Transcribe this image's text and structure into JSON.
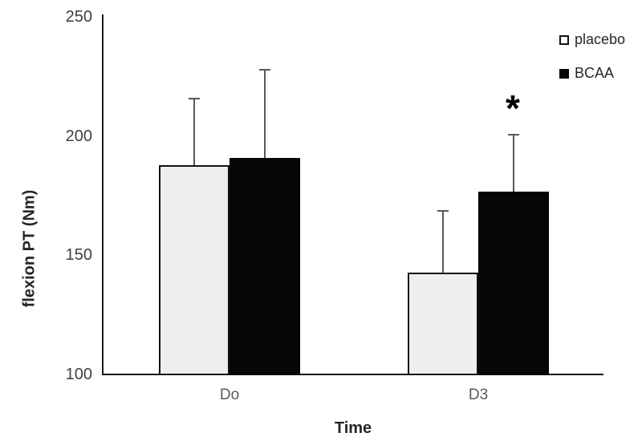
{
  "chart_data": {
    "type": "bar",
    "title": "",
    "xlabel": "Time",
    "ylabel": "flexion PT (Nm)",
    "categories": [
      "Do",
      "D3"
    ],
    "series": [
      {
        "name": "placebo",
        "fill": "#eeeeee",
        "border": "#111111",
        "values": [
          188,
          143
        ],
        "errors_up": [
          28,
          26
        ]
      },
      {
        "name": "BCAA",
        "fill": "#060606",
        "border": "#060606",
        "values": [
          191,
          177
        ],
        "errors_up": [
          37,
          24
        ]
      }
    ],
    "y_ticks": [
      100,
      150,
      200,
      250
    ],
    "ylim": [
      100,
      250
    ],
    "grid": "off",
    "legend_position": "top-right",
    "error_bar_color": "#595959",
    "axis_color": "#1a1a1a",
    "tick_label_color": "#3f3f3f",
    "annotations": [
      {
        "text": "*",
        "series": "BCAA",
        "category": "D3"
      }
    ]
  }
}
